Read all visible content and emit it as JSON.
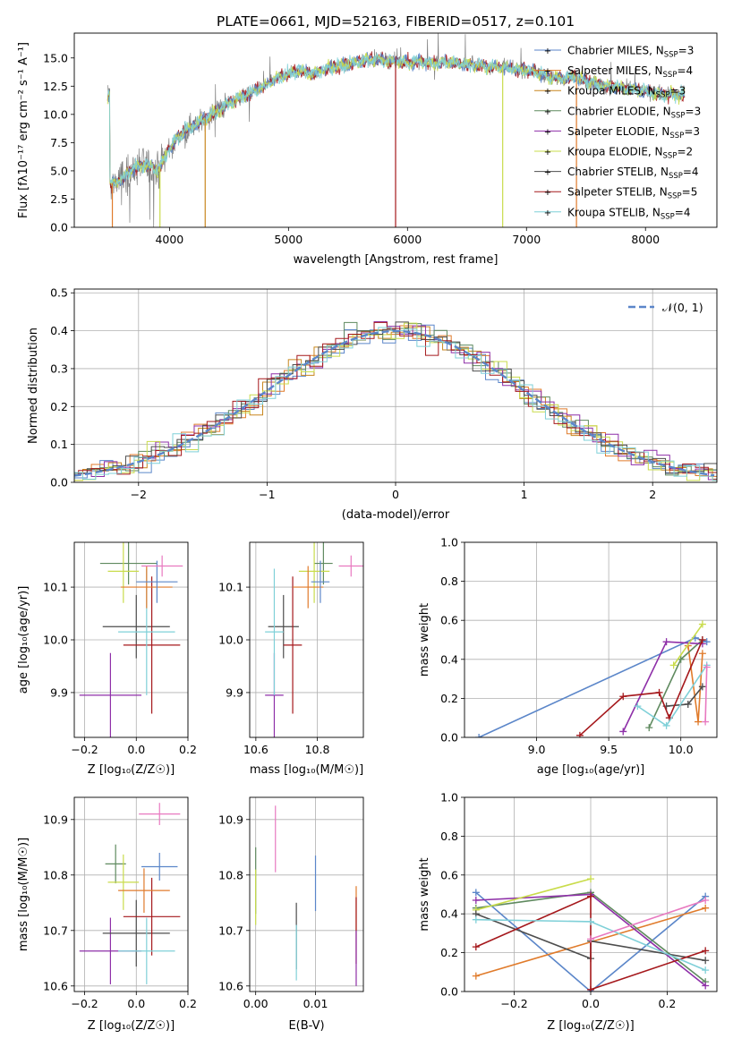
{
  "colors": {
    "chabrier_miles": "#5b86c9",
    "salpeter_miles": "#e07b2b",
    "kroupa_miles": "#c8861f",
    "chabrier_elodie": "#5f8a5f",
    "salpeter_elodie": "#8e2fa8",
    "kroupa_elodie": "#c9dc4b",
    "chabrier_stelib": "#4d4d4d",
    "salpeter_stelib": "#a5181c",
    "kroupa_stelib": "#7fd0d8",
    "pink": "#e879c0",
    "normal": "#5b86c9"
  },
  "chart_data": [
    {
      "id": "spectrum",
      "type": "line",
      "title": "PLATE=0661, MJD=52163, FIBERID=0517, z=0.101",
      "xlabel": "wavelength [Angstrom, rest frame]",
      "ylabel": "Flux [fλ10⁻¹⁷ erg cm⁻² s⁻¹ A⁻¹]",
      "xlim": [
        3200,
        8600
      ],
      "ylim": [
        0,
        17.2
      ],
      "xticks": [
        "4000",
        "5000",
        "6000",
        "7000",
        "8000"
      ],
      "yticks": [
        "0.0",
        "2.5",
        "5.0",
        "7.5",
        "10.0",
        "12.5",
        "15.0"
      ],
      "legend": {
        "placement": "top-right",
        "entries": [
          {
            "label": "Chabrier MILES, N",
            "sub": "SSP",
            "suffix": "=3",
            "color_key": "chabrier_miles"
          },
          {
            "label": "Salpeter MILES, N",
            "sub": "SSP",
            "suffix": "=4",
            "color_key": "salpeter_miles"
          },
          {
            "label": "Kroupa MILES, N",
            "sub": "SSP",
            "suffix": "=3",
            "color_key": "kroupa_miles"
          },
          {
            "label": "Chabrier ELODIE, N",
            "sub": "SSP",
            "suffix": "=3",
            "color_key": "chabrier_elodie"
          },
          {
            "label": "Salpeter ELODIE, N",
            "sub": "SSP",
            "suffix": "=3",
            "color_key": "salpeter_elodie"
          },
          {
            "label": "Kroupa ELODIE, N",
            "sub": "SSP",
            "suffix": "=2",
            "color_key": "kroupa_elodie"
          },
          {
            "label": "Chabrier STELIB, N",
            "sub": "SSP",
            "suffix": "=4",
            "color_key": "chabrier_stelib"
          },
          {
            "label": "Salpeter STELIB, N",
            "sub": "SSP",
            "suffix": "=5",
            "color_key": "salpeter_stelib"
          },
          {
            "label": "Kroupa STELIB, N",
            "sub": "SSP",
            "suffix": "=4",
            "color_key": "kroupa_stelib"
          }
        ]
      },
      "continuum": [
        [
          3500,
          3.8
        ],
        [
          3600,
          4.3
        ],
        [
          3700,
          5.2
        ],
        [
          3800,
          5.6
        ],
        [
          3900,
          5.0
        ],
        [
          4000,
          7.0
        ],
        [
          4100,
          8.3
        ],
        [
          4200,
          9.0
        ],
        [
          4300,
          9.6
        ],
        [
          4400,
          10.3
        ],
        [
          4500,
          11.0
        ],
        [
          4600,
          11.5
        ],
        [
          4700,
          12.0
        ],
        [
          4800,
          12.5
        ],
        [
          4900,
          13.2
        ],
        [
          5000,
          13.6
        ],
        [
          5100,
          13.9
        ],
        [
          5200,
          13.6
        ],
        [
          5300,
          14.0
        ],
        [
          5400,
          14.3
        ],
        [
          5500,
          14.4
        ],
        [
          5600,
          14.7
        ],
        [
          5700,
          14.9
        ],
        [
          5800,
          14.8
        ],
        [
          5900,
          14.7
        ],
        [
          6000,
          14.6
        ],
        [
          6100,
          14.7
        ],
        [
          6200,
          14.5
        ],
        [
          6300,
          14.6
        ],
        [
          6400,
          14.6
        ],
        [
          6500,
          14.4
        ],
        [
          6600,
          14.4
        ],
        [
          6700,
          14.2
        ],
        [
          6800,
          14.2
        ],
        [
          6900,
          14.0
        ],
        [
          7000,
          13.9
        ],
        [
          7100,
          13.7
        ],
        [
          7200,
          13.3
        ],
        [
          7300,
          13.2
        ],
        [
          7400,
          13.4
        ],
        [
          7500,
          12.9
        ],
        [
          7600,
          12.7
        ],
        [
          7700,
          12.5
        ],
        [
          7800,
          12.3
        ],
        [
          7900,
          12.2
        ],
        [
          8000,
          12.0
        ],
        [
          8100,
          11.8
        ],
        [
          8200,
          11.8
        ],
        [
          8300,
          11.7
        ]
      ]
    },
    {
      "id": "residuals",
      "type": "histogram",
      "xlabel": "(data-model)/error",
      "ylabel": "Normed distribution",
      "xlim": [
        -2.5,
        2.5
      ],
      "ylim": [
        0,
        0.51
      ],
      "xticks": [
        "−2",
        "−1",
        "0",
        "1",
        "2"
      ],
      "yticks": [
        "0.0",
        "0.1",
        "0.2",
        "0.3",
        "0.4",
        "0.5"
      ],
      "legend": {
        "placement": "top-right",
        "entries": [
          {
            "label": "𝒩(0, 1)",
            "color_key": "normal"
          }
        ]
      }
    },
    {
      "id": "age_vs_Z",
      "type": "errorbar",
      "xlabel": "Z [log₁₀(Z/Z☉)]",
      "ylabel": "age  [log₁₀(age/yr)]",
      "xlim": [
        -0.24,
        0.2
      ],
      "ylim": [
        9.815,
        10.185
      ],
      "xticks": [
        "−0.2",
        "0.0",
        "0.2"
      ],
      "yticks": [
        "9.9",
        "10.0",
        "10.1"
      ],
      "points": [
        {
          "c": "salpeter_elodie",
          "x": -0.1,
          "xe": 0.12,
          "y": 9.895,
          "ye": 0.08
        },
        {
          "c": "chabrier_stelib",
          "x": 0.0,
          "xe": 0.13,
          "y": 10.025,
          "ye": 0.06
        },
        {
          "c": "salpeter_stelib",
          "x": 0.06,
          "xe": 0.11,
          "y": 9.99,
          "ye": 0.13
        },
        {
          "c": "kroupa_stelib",
          "x": 0.04,
          "xe": 0.11,
          "y": 10.015,
          "ye": 0.12
        },
        {
          "c": "chabrier_elodie",
          "x": -0.03,
          "xe": 0.11,
          "y": 10.145,
          "ye": 0.04
        },
        {
          "c": "kroupa_elodie",
          "x": -0.05,
          "xe": 0.06,
          "y": 10.13,
          "ye": 0.06
        },
        {
          "c": "salpeter_miles",
          "x": 0.04,
          "xe": 0.1,
          "y": 10.1,
          "ye": 0.04
        },
        {
          "c": "chabrier_miles",
          "x": 0.08,
          "xe": 0.08,
          "y": 10.11,
          "ye": 0.04
        },
        {
          "c": "pink",
          "x": 0.1,
          "xe": 0.08,
          "y": 10.14,
          "ye": 0.02
        }
      ]
    },
    {
      "id": "age_vs_mass",
      "type": "errorbar",
      "xlabel": "mass [log₁₀(M/M☉)]",
      "ylabel": "",
      "xlim": [
        10.58,
        10.95
      ],
      "ylim": [
        9.815,
        10.185
      ],
      "xticks": [
        "10.6",
        "10.8"
      ],
      "yticks": [
        "9.9",
        "10.0",
        "10.1"
      ],
      "points": [
        {
          "c": "salpeter_elodie",
          "x": 10.66,
          "xe": 0.03,
          "y": 9.895,
          "ye": 0.08
        },
        {
          "c": "chabrier_stelib",
          "x": 10.69,
          "xe": 0.05,
          "y": 10.025,
          "ye": 0.06
        },
        {
          "c": "salpeter_stelib",
          "x": 10.72,
          "xe": 0.03,
          "y": 9.99,
          "ye": 0.13
        },
        {
          "c": "kroupa_stelib",
          "x": 10.66,
          "xe": 0.03,
          "y": 10.015,
          "ye": 0.12
        },
        {
          "c": "chabrier_elodie",
          "x": 10.82,
          "xe": 0.03,
          "y": 10.145,
          "ye": 0.04
        },
        {
          "c": "kroupa_elodie",
          "x": 10.79,
          "xe": 0.05,
          "y": 10.13,
          "ye": 0.06
        },
        {
          "c": "salpeter_miles",
          "x": 10.77,
          "xe": 0.05,
          "y": 10.1,
          "ye": 0.04
        },
        {
          "c": "chabrier_miles",
          "x": 10.81,
          "xe": 0.03,
          "y": 10.11,
          "ye": 0.04
        },
        {
          "c": "pink",
          "x": 10.91,
          "xe": 0.04,
          "y": 10.14,
          "ye": 0.02
        }
      ]
    },
    {
      "id": "weight_vs_age",
      "type": "line",
      "xlabel": "age  [log₁₀(age/yr)]",
      "ylabel": "mass weight",
      "xlim": [
        8.5,
        10.25
      ],
      "ylim": [
        0,
        1
      ],
      "xticks": [
        "9.0",
        "9.5",
        "10.0"
      ],
      "yticks": [
        "0.0",
        "0.2",
        "0.4",
        "0.6",
        "0.8",
        "1.0"
      ],
      "series": [
        {
          "c": "chabrier_miles",
          "points": [
            [
              8.6,
              0.0
            ],
            [
              10.1,
              0.51
            ],
            [
              10.18,
              0.49
            ]
          ]
        },
        {
          "c": "salpeter_miles",
          "points": [
            [
              10.05,
              0.47
            ],
            [
              10.12,
              0.08
            ],
            [
              10.15,
              0.43
            ]
          ]
        },
        {
          "c": "chabrier_elodie",
          "points": [
            [
              9.78,
              0.05
            ],
            [
              10.0,
              0.4
            ],
            [
              10.15,
              0.5
            ]
          ]
        },
        {
          "c": "salpeter_elodie",
          "points": [
            [
              9.6,
              0.03
            ],
            [
              9.9,
              0.49
            ],
            [
              10.15,
              0.48
            ]
          ]
        },
        {
          "c": "kroupa_elodie",
          "points": [
            [
              9.95,
              0.37
            ],
            [
              10.15,
              0.58
            ]
          ]
        },
        {
          "c": "chabrier_stelib",
          "points": [
            [
              9.9,
              0.16
            ],
            [
              10.05,
              0.17
            ],
            [
              10.15,
              0.26
            ]
          ]
        },
        {
          "c": "salpeter_stelib",
          "points": [
            [
              9.3,
              0.01
            ],
            [
              9.6,
              0.21
            ],
            [
              9.85,
              0.23
            ],
            [
              9.92,
              0.1
            ],
            [
              10.15,
              0.5
            ]
          ]
        },
        {
          "c": "kroupa_stelib",
          "points": [
            [
              9.7,
              0.16
            ],
            [
              9.9,
              0.06
            ],
            [
              10.18,
              0.37
            ]
          ]
        },
        {
          "c": "pink",
          "points": [
            [
              10.17,
              0.08
            ],
            [
              10.18,
              0.36
            ]
          ]
        }
      ]
    },
    {
      "id": "mass_vs_Z",
      "type": "errorbar",
      "xlabel": "Z [log₁₀(Z/Z☉)]",
      "ylabel": "mass [log₁₀(M/M☉)]",
      "xlim": [
        -0.24,
        0.2
      ],
      "ylim": [
        10.59,
        10.94
      ],
      "xticks": [
        "−0.2",
        "0.0",
        "0.2"
      ],
      "yticks": [
        "10.6",
        "10.7",
        "10.8",
        "10.9"
      ],
      "points": [
        {
          "c": "salpeter_elodie",
          "x": -0.1,
          "xe": 0.12,
          "y": 10.663,
          "ye": 0.06
        },
        {
          "c": "chabrier_stelib",
          "x": 0.0,
          "xe": 0.13,
          "y": 10.695,
          "ye": 0.06
        },
        {
          "c": "salpeter_stelib",
          "x": 0.06,
          "xe": 0.11,
          "y": 10.725,
          "ye": 0.07
        },
        {
          "c": "kroupa_stelib",
          "x": 0.04,
          "xe": 0.11,
          "y": 10.663,
          "ye": 0.06
        },
        {
          "c": "chabrier_elodie",
          "x": -0.08,
          "xe": 0.04,
          "y": 10.82,
          "ye": 0.035
        },
        {
          "c": "kroupa_elodie",
          "x": -0.05,
          "xe": 0.06,
          "y": 10.787,
          "ye": 0.05
        },
        {
          "c": "salpeter_miles",
          "x": 0.03,
          "xe": 0.1,
          "y": 10.772,
          "ye": 0.04
        },
        {
          "c": "chabrier_miles",
          "x": 0.09,
          "xe": 0.07,
          "y": 10.815,
          "ye": 0.025
        },
        {
          "c": "pink",
          "x": 0.09,
          "xe": 0.08,
          "y": 10.91,
          "ye": 0.02
        }
      ]
    },
    {
      "id": "mass_vs_ebv",
      "type": "errorbar",
      "xlabel": "E(B-V)",
      "ylabel": "",
      "xlim": [
        -0.001,
        0.018
      ],
      "ylim": [
        10.59,
        10.94
      ],
      "xticks": [
        "0.00",
        "0.01"
      ],
      "yticks": [
        "10.6",
        "10.7",
        "10.8",
        "10.9"
      ],
      "points": [
        {
          "c": "chabrier_elodie",
          "x": 0.0,
          "y": 10.79,
          "ye": 0.06
        },
        {
          "c": "kroupa_elodie",
          "x": 0.0,
          "y": 10.76,
          "ye": 0.05
        },
        {
          "c": "pink",
          "x": 0.0033,
          "y": 10.865,
          "ye": 0.06
        },
        {
          "c": "chabrier_stelib",
          "x": 0.0068,
          "y": 10.69,
          "ye": 0.06
        },
        {
          "c": "kroupa_stelib",
          "x": 0.0068,
          "y": 10.66,
          "ye": 0.05
        },
        {
          "c": "chabrier_miles",
          "x": 0.01,
          "y": 10.785,
          "ye": 0.05
        },
        {
          "c": "salpeter_miles",
          "x": 0.0168,
          "y": 10.74,
          "ye": 0.04
        },
        {
          "c": "salpeter_stelib",
          "x": 0.0168,
          "y": 10.7,
          "ye": 0.06
        },
        {
          "c": "salpeter_elodie",
          "x": 0.0168,
          "y": 10.65,
          "ye": 0.05
        }
      ]
    },
    {
      "id": "weight_vs_Z",
      "type": "line",
      "xlabel": "Z [log₁₀(Z/Z☉)]",
      "ylabel": "mass weight",
      "xlim": [
        -0.33,
        0.33
      ],
      "ylim": [
        0,
        1
      ],
      "xticks": [
        "−0.2",
        "0.0",
        "0.2"
      ],
      "yticks": [
        "0.0",
        "0.2",
        "0.4",
        "0.6",
        "0.8",
        "1.0"
      ],
      "series": [
        {
          "c": "chabrier_miles",
          "points": [
            [
              -0.3,
              0.51
            ],
            [
              0.0,
              0.0
            ],
            [
              0.3,
              0.49
            ]
          ]
        },
        {
          "c": "salpeter_miles",
          "points": [
            [
              -0.3,
              0.08
            ],
            [
              0.3,
              0.43
            ]
          ]
        },
        {
          "c": "chabrier_elodie",
          "points": [
            [
              -0.3,
              0.43
            ],
            [
              0.0,
              0.51
            ],
            [
              0.3,
              0.05
            ]
          ]
        },
        {
          "c": "salpeter_elodie",
          "points": [
            [
              -0.3,
              0.47
            ],
            [
              0.0,
              0.5
            ],
            [
              0.3,
              0.03
            ]
          ]
        },
        {
          "c": "kroupa_elodie",
          "points": [
            [
              -0.3,
              0.42
            ],
            [
              0.0,
              0.58
            ]
          ]
        },
        {
          "c": "chabrier_stelib",
          "points": [
            [
              -0.3,
              0.4
            ],
            [
              0.0,
              0.17
            ],
            [
              0.0,
              0.26
            ],
            [
              0.3,
              0.16
            ]
          ]
        },
        {
          "c": "salpeter_stelib",
          "points": [
            [
              -0.3,
              0.23
            ],
            [
              0.0,
              0.49
            ],
            [
              0.0,
              0.01
            ],
            [
              0.3,
              0.21
            ]
          ]
        },
        {
          "c": "kroupa_stelib",
          "points": [
            [
              -0.3,
              0.37
            ],
            [
              0.0,
              0.36
            ],
            [
              0.3,
              0.11
            ]
          ]
        },
        {
          "c": "pink",
          "points": [
            [
              0.0,
              0.27
            ],
            [
              0.3,
              0.47
            ]
          ]
        }
      ]
    }
  ]
}
